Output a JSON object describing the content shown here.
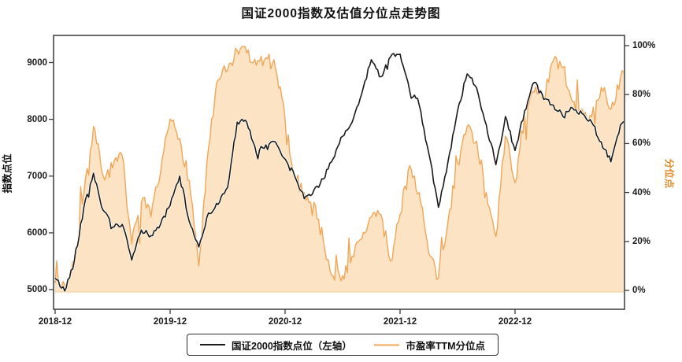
{
  "title": "国证2000指数及估值分位点走势图",
  "left_axis": {
    "label": "指数点位",
    "tick_values": [
      5000,
      6000,
      7000,
      8000,
      9000
    ],
    "tick_labels": [
      "5000",
      "6000",
      "7000",
      "8000",
      "9000"
    ]
  },
  "right_axis": {
    "label": "分位点",
    "label_color": "#e08f2f",
    "tick_values": [
      0,
      20,
      40,
      60,
      80,
      100
    ],
    "tick_labels": [
      "0%",
      "20%",
      "40%",
      "60%",
      "80%",
      "100%"
    ]
  },
  "x_axis": {
    "tick_labels": [
      "2018-12",
      "2019-12",
      "2020-12",
      "2021-12",
      "2022-12"
    ]
  },
  "legend": {
    "items": [
      {
        "label": "国证2000指数点位（左轴）",
        "color": "#1b1b1b"
      },
      {
        "label": "市盈率TTM分位点",
        "color": "#f6c38c"
      }
    ]
  },
  "colors": {
    "index_line": "#1a1a1a",
    "index_line_halo": "#ffffff",
    "pe_line": "#f1a657",
    "pe_fill": "#fbe3c3",
    "axis": "#3a3a3a"
  },
  "chart_data": {
    "type": "line",
    "title": "国证2000指数及估值分位点走势图",
    "x_start": "2018-12",
    "x_end": "2023-12",
    "x_interval": "monthly",
    "x_tick_labels": [
      "2018-12",
      "2019-12",
      "2020-12",
      "2021-12",
      "2022-12"
    ],
    "ylim_left": [
      5000,
      9000
    ],
    "ylabel_left": "指数点位",
    "ylim_right": [
      0,
      100
    ],
    "ylabel_right": "分位点",
    "grid": false,
    "legend_position": "bottom-center",
    "series": [
      {
        "name": "国证2000指数点位（左轴）",
        "axis": "left",
        "style": "line",
        "color": "#1a1a1a",
        "values": [
          5200,
          4975,
          5500,
          6450,
          7050,
          6400,
          6100,
          6150,
          5520,
          6050,
          5950,
          6150,
          6480,
          7000,
          6200,
          5750,
          6350,
          6500,
          6800,
          7950,
          7950,
          7400,
          7550,
          7600,
          7300,
          7000,
          6600,
          6750,
          6950,
          7300,
          7700,
          7950,
          8450,
          9050,
          8750,
          9100,
          9150,
          8500,
          8250,
          7400,
          6450,
          7250,
          8150,
          8800,
          8550,
          7900,
          7200,
          8050,
          7450,
          8150,
          8650,
          8350,
          8250,
          8050,
          8200,
          8100,
          7950,
          7600,
          7250,
          7900,
          7950
        ]
      },
      {
        "name": "市盈率TTM分位点",
        "axis": "right",
        "style": "area",
        "line_color": "#f1a657",
        "fill_color": "#fbe3c3",
        "values": [
          3,
          2,
          10,
          40,
          67,
          47,
          50,
          55,
          19,
          36,
          30,
          48,
          70,
          62,
          45,
          10,
          58,
          86,
          90,
          98,
          97,
          92,
          95,
          91,
          70,
          46,
          40,
          36,
          20,
          6,
          6,
          14,
          21,
          30,
          31,
          12,
          31,
          51,
          40,
          15,
          5,
          28,
          52,
          67,
          61,
          40,
          22,
          63,
          44,
          72,
          81,
          78,
          94,
          91,
          77,
          74,
          71,
          83,
          74,
          87,
          86
        ]
      }
    ]
  }
}
